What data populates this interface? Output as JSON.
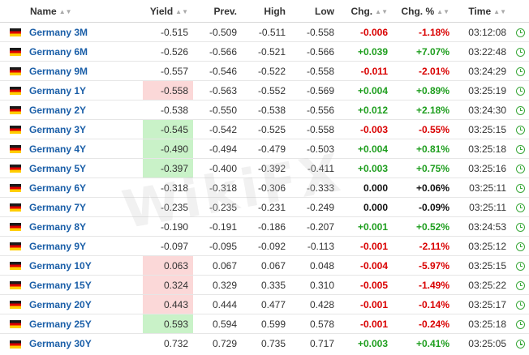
{
  "columns": {
    "name": "Name",
    "yield": "Yield",
    "prev": "Prev.",
    "high": "High",
    "low": "Low",
    "chg": "Chg.",
    "chg_pct": "Chg. %",
    "time": "Time"
  },
  "icons": {
    "flag": "germany-flag-icon",
    "clock": "clock-icon",
    "sort": "sort-icon"
  },
  "colors": {
    "positive": "#1e9e1e",
    "negative": "#d90000",
    "link": "#1b5fa8",
    "up_highlight": "#c9f2c8",
    "down_highlight": "#fbd8d8"
  },
  "watermark": "WikiFX",
  "rows": [
    {
      "name": "Germany 3M",
      "yield": "-0.515",
      "prev": "-0.509",
      "high": "-0.511",
      "low": "-0.558",
      "chg": "-0.006",
      "chg_pct": "-1.18%",
      "time": "03:12:08",
      "dir": "neg",
      "hl": ""
    },
    {
      "name": "Germany 6M",
      "yield": "-0.526",
      "prev": "-0.566",
      "high": "-0.521",
      "low": "-0.566",
      "chg": "+0.039",
      "chg_pct": "+7.07%",
      "time": "03:22:48",
      "dir": "pos",
      "hl": ""
    },
    {
      "name": "Germany 9M",
      "yield": "-0.557",
      "prev": "-0.546",
      "high": "-0.522",
      "low": "-0.558",
      "chg": "-0.011",
      "chg_pct": "-2.01%",
      "time": "03:24:29",
      "dir": "neg",
      "hl": ""
    },
    {
      "name": "Germany 1Y",
      "yield": "-0.558",
      "prev": "-0.563",
      "high": "-0.552",
      "low": "-0.569",
      "chg": "+0.004",
      "chg_pct": "+0.89%",
      "time": "03:25:19",
      "dir": "pos",
      "hl": "down"
    },
    {
      "name": "Germany 2Y",
      "yield": "-0.538",
      "prev": "-0.550",
      "high": "-0.538",
      "low": "-0.556",
      "chg": "+0.012",
      "chg_pct": "+2.18%",
      "time": "03:24:30",
      "dir": "pos",
      "hl": ""
    },
    {
      "name": "Germany 3Y",
      "yield": "-0.545",
      "prev": "-0.542",
      "high": "-0.525",
      "low": "-0.558",
      "chg": "-0.003",
      "chg_pct": "-0.55%",
      "time": "03:25:15",
      "dir": "neg",
      "hl": "up"
    },
    {
      "name": "Germany 4Y",
      "yield": "-0.490",
      "prev": "-0.494",
      "high": "-0.479",
      "low": "-0.503",
      "chg": "+0.004",
      "chg_pct": "+0.81%",
      "time": "03:25:18",
      "dir": "pos",
      "hl": "up"
    },
    {
      "name": "Germany 5Y",
      "yield": "-0.397",
      "prev": "-0.400",
      "high": "-0.392",
      "low": "-0.411",
      "chg": "+0.003",
      "chg_pct": "+0.75%",
      "time": "03:25:16",
      "dir": "pos",
      "hl": "up"
    },
    {
      "name": "Germany 6Y",
      "yield": "-0.318",
      "prev": "-0.318",
      "high": "-0.306",
      "low": "-0.333",
      "chg": "0.000",
      "chg_pct": "+0.06%",
      "time": "03:25:11",
      "dir": "zero",
      "hl": ""
    },
    {
      "name": "Germany 7Y",
      "yield": "-0.235",
      "prev": "-0.235",
      "high": "-0.231",
      "low": "-0.249",
      "chg": "0.000",
      "chg_pct": "-0.09%",
      "time": "03:25:11",
      "dir": "zero",
      "hl": ""
    },
    {
      "name": "Germany 8Y",
      "yield": "-0.190",
      "prev": "-0.191",
      "high": "-0.186",
      "low": "-0.207",
      "chg": "+0.001",
      "chg_pct": "+0.52%",
      "time": "03:24:53",
      "dir": "pos",
      "hl": ""
    },
    {
      "name": "Germany 9Y",
      "yield": "-0.097",
      "prev": "-0.095",
      "high": "-0.092",
      "low": "-0.113",
      "chg": "-0.001",
      "chg_pct": "-2.11%",
      "time": "03:25:12",
      "dir": "neg",
      "hl": ""
    },
    {
      "name": "Germany 10Y",
      "yield": "0.063",
      "prev": "0.067",
      "high": "0.067",
      "low": "0.048",
      "chg": "-0.004",
      "chg_pct": "-5.97%",
      "time": "03:25:15",
      "dir": "neg",
      "hl": "down"
    },
    {
      "name": "Germany 15Y",
      "yield": "0.324",
      "prev": "0.329",
      "high": "0.335",
      "low": "0.310",
      "chg": "-0.005",
      "chg_pct": "-1.49%",
      "time": "03:25:22",
      "dir": "neg",
      "hl": "down"
    },
    {
      "name": "Germany 20Y",
      "yield": "0.443",
      "prev": "0.444",
      "high": "0.477",
      "low": "0.428",
      "chg": "-0.001",
      "chg_pct": "-0.14%",
      "time": "03:25:17",
      "dir": "neg",
      "hl": "down"
    },
    {
      "name": "Germany 25Y",
      "yield": "0.593",
      "prev": "0.594",
      "high": "0.599",
      "low": "0.578",
      "chg": "-0.001",
      "chg_pct": "-0.24%",
      "time": "03:25:18",
      "dir": "neg",
      "hl": "up"
    },
    {
      "name": "Germany 30Y",
      "yield": "0.732",
      "prev": "0.729",
      "high": "0.735",
      "low": "0.717",
      "chg": "+0.003",
      "chg_pct": "+0.41%",
      "time": "03:25:05",
      "dir": "pos",
      "hl": ""
    }
  ]
}
